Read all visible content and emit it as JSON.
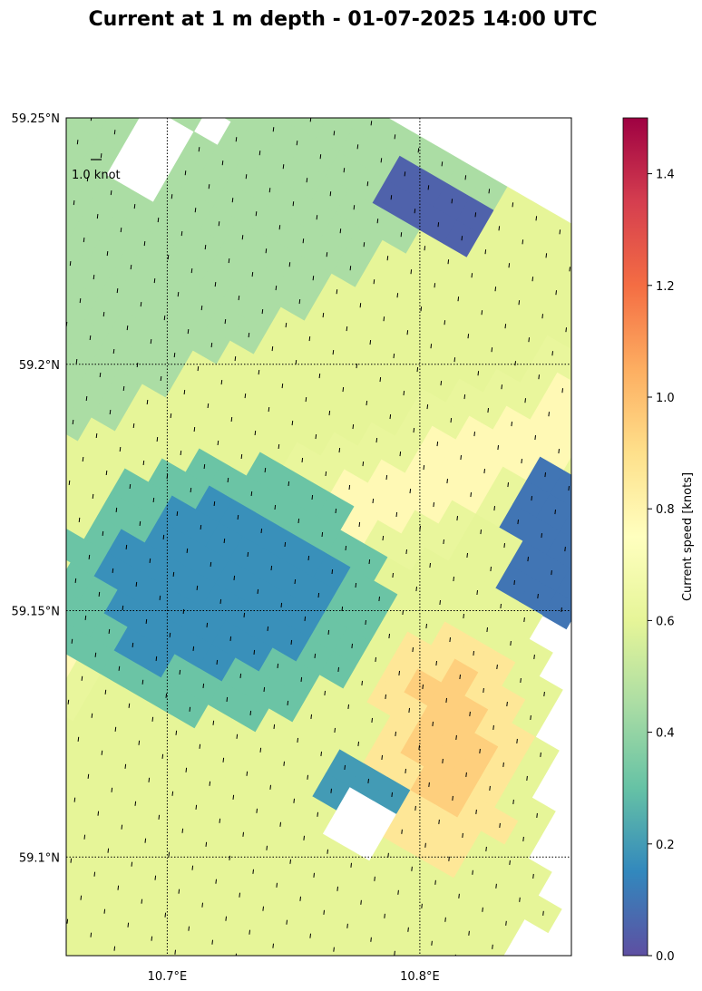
{
  "chart_data": {
    "type": "heatmap",
    "title": "Current at 1 m depth - 01-07-2025 14:00 UTC",
    "xlabel": "",
    "ylabel": "",
    "xlim": [
      10.66,
      10.86
    ],
    "ylim": [
      59.08,
      59.25
    ],
    "x_ticks": [
      {
        "value": 10.7,
        "label": "10.7°E"
      },
      {
        "value": 10.8,
        "label": "10.8°E"
      }
    ],
    "y_ticks": [
      {
        "value": 59.25,
        "label": "59.25°N"
      },
      {
        "value": 59.2,
        "label": "59.2°N"
      },
      {
        "value": 59.15,
        "label": "59.15°N"
      },
      {
        "value": 59.1,
        "label": "59.1°N"
      }
    ],
    "grid": true,
    "grid_style": "dotted",
    "quiver_key_label": "1.0 knot",
    "colorbar": {
      "label": "Current speed [knots]",
      "min": 0.0,
      "max": 1.5,
      "colormap": "Spectral_r",
      "ticks": [
        "0.0",
        "0.2",
        "0.4",
        "0.6",
        "0.8",
        "1.0",
        "1.2",
        "1.4"
      ]
    },
    "speed_field": {
      "grid_rotation_deg": 30,
      "row_spacing_deg_lat": 0.0055,
      "col_spacing_deg_lat": 0.0063,
      "arrow_direction": "northward",
      "nodata_color": "#ffffff",
      "regions": [
        {
          "name": "background_southwest_shelf",
          "speed_knots": 0.6
        },
        {
          "name": "northwest_coast",
          "speed_knots": 0.45
        },
        {
          "name": "central_slow_zone",
          "speed_knots": 0.17
        },
        {
          "name": "main_channel_jet",
          "speed_knots": 0.78
        },
        {
          "name": "southeast_jet_core",
          "speed_knots": 0.95
        },
        {
          "name": "northeast_shore_edge",
          "speed_knots": 0.05
        },
        {
          "name": "eastern_edge_north",
          "speed_knots": 0.1
        },
        {
          "name": "southern_island_edge",
          "speed_knots": 0.2
        }
      ]
    }
  }
}
